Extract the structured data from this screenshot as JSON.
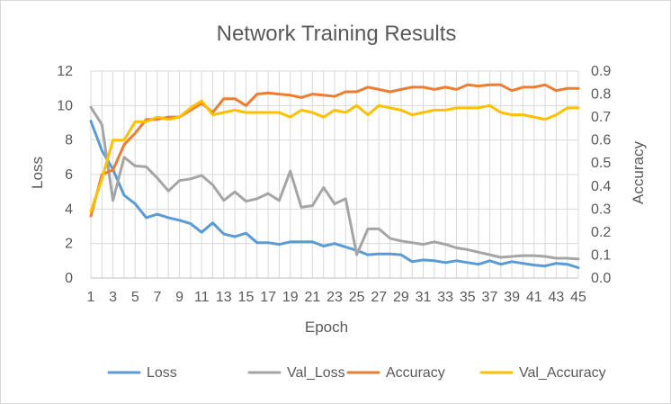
{
  "chart_data": {
    "type": "line",
    "title": "Network Training Results",
    "xlabel": "Epoch",
    "ylabel": "Loss",
    "y2label": "Accuracy",
    "ylim": [
      0,
      12
    ],
    "y2lim": [
      0,
      0.9
    ],
    "yticks": [
      "0",
      "2",
      "4",
      "6",
      "8",
      "10",
      "12"
    ],
    "y2ticks": [
      "0.0",
      "0.1",
      "0.2",
      "0.3",
      "0.4",
      "0.5",
      "0.6",
      "0.7",
      "0.8",
      "0.9"
    ],
    "x": [
      1,
      2,
      3,
      4,
      5,
      6,
      7,
      8,
      9,
      10,
      11,
      12,
      13,
      14,
      15,
      16,
      17,
      18,
      19,
      20,
      21,
      22,
      23,
      24,
      25,
      26,
      27,
      28,
      29,
      30,
      31,
      32,
      33,
      34,
      35,
      36,
      37,
      38,
      39,
      40,
      41,
      42,
      43,
      44,
      45
    ],
    "xtick_labels": [
      "1",
      "3",
      "5",
      "7",
      "9",
      "11",
      "13",
      "15",
      "17",
      "19",
      "21",
      "23",
      "25",
      "27",
      "29",
      "31",
      "33",
      "35",
      "37",
      "39",
      "41",
      "43",
      "45"
    ],
    "grid": true,
    "legend": "bottom",
    "series": [
      {
        "name": "Loss",
        "axis": "left",
        "color": "#5b9bd5",
        "values": [
          9.1,
          7.4,
          6.3,
          4.8,
          4.3,
          3.5,
          3.7,
          3.5,
          3.35,
          3.15,
          2.65,
          3.2,
          2.55,
          2.4,
          2.6,
          2.05,
          2.05,
          1.95,
          2.1,
          2.1,
          2.1,
          1.85,
          2.0,
          1.8,
          1.6,
          1.35,
          1.4,
          1.4,
          1.35,
          0.95,
          1.05,
          1.0,
          0.9,
          1.0,
          0.9,
          0.8,
          1.0,
          0.8,
          0.95,
          0.85,
          0.75,
          0.7,
          0.85,
          0.8,
          0.6
        ]
      },
      {
        "name": "Val_Loss",
        "axis": "left",
        "color": "#a5a5a5",
        "values": [
          9.9,
          8.9,
          4.5,
          7.0,
          6.5,
          6.45,
          5.8,
          5.05,
          5.65,
          5.75,
          5.95,
          5.4,
          4.5,
          5.0,
          4.45,
          4.6,
          4.9,
          4.5,
          6.2,
          4.1,
          4.2,
          5.25,
          4.3,
          4.6,
          1.35,
          2.85,
          2.85,
          2.3,
          2.15,
          2.05,
          1.95,
          2.1,
          1.95,
          1.75,
          1.65,
          1.5,
          1.35,
          1.2,
          1.25,
          1.3,
          1.3,
          1.25,
          1.15,
          1.15,
          1.1
        ]
      },
      {
        "name": "Accuracy",
        "axis": "right",
        "color": "#ed7d31",
        "values": [
          0.27,
          0.45,
          0.47,
          0.58,
          0.63,
          0.69,
          0.69,
          0.7,
          0.7,
          0.73,
          0.76,
          0.72,
          0.78,
          0.78,
          0.75,
          0.8,
          0.805,
          0.8,
          0.795,
          0.785,
          0.8,
          0.795,
          0.79,
          0.81,
          0.81,
          0.83,
          0.82,
          0.81,
          0.82,
          0.83,
          0.83,
          0.82,
          0.83,
          0.82,
          0.84,
          0.835,
          0.84,
          0.84,
          0.815,
          0.83,
          0.83,
          0.84,
          0.815,
          0.825,
          0.825
        ]
      },
      {
        "name": "Val_Accuracy",
        "axis": "right",
        "color": "#ffc000",
        "values": [
          0.29,
          0.43,
          0.6,
          0.6,
          0.68,
          0.68,
          0.7,
          0.69,
          0.7,
          0.74,
          0.77,
          0.71,
          0.72,
          0.73,
          0.72,
          0.72,
          0.72,
          0.72,
          0.7,
          0.73,
          0.72,
          0.7,
          0.73,
          0.72,
          0.75,
          0.71,
          0.75,
          0.74,
          0.73,
          0.71,
          0.72,
          0.73,
          0.73,
          0.74,
          0.74,
          0.74,
          0.75,
          0.72,
          0.71,
          0.71,
          0.7,
          0.69,
          0.71,
          0.74,
          0.74
        ]
      }
    ]
  }
}
